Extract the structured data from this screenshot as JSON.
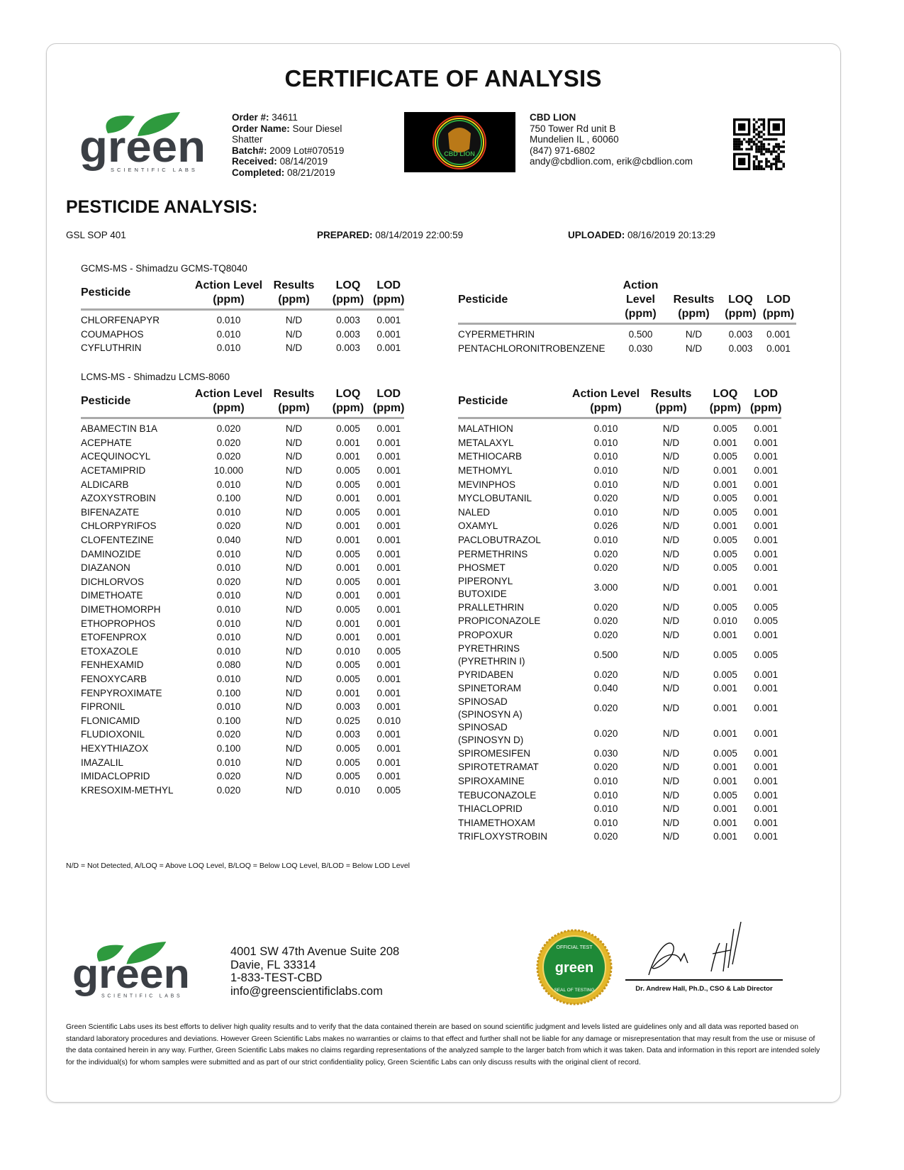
{
  "title": "CERTIFICATE OF ANALYSIS",
  "lab_logo": {
    "text": "green",
    "subtext": "SCIENTIFIC LABS",
    "brand_green": "#2e9a3e",
    "brand_gray": "#3b3f45"
  },
  "order": {
    "order_no_label": "Order #:",
    "order_no": "34611",
    "order_name_label": "Order Name:",
    "order_name": "Sour Diesel",
    "order_name_cont": "Shatter",
    "batch_label": "Batch#:",
    "batch": "2009 Lot#070519",
    "received_label": "Received:",
    "received": "08/14/2019",
    "completed_label": "Completed:",
    "completed": "08/21/2019"
  },
  "client_logo": {
    "text": "CBD LION"
  },
  "client": {
    "name": "CBD LION",
    "address1": "750 Tower Rd unit B",
    "address2": "Mundelien IL , 60060",
    "phone": "(847) 971-6802",
    "emails": "andy@cbdlion.com, erik@cbdlion.com"
  },
  "section_title": "PESTICIDE ANALYSIS:",
  "meta": {
    "sop": "GSL SOP 401",
    "prepared_label": "PREPARED:",
    "prepared": "08/14/2019 22:00:59",
    "uploaded_label": "UPLOADED:",
    "uploaded": "08/16/2019 20:13:29"
  },
  "headers": {
    "pesticide": "Pesticide",
    "action_level": "Action Level",
    "results": "Results",
    "loq": "LOQ",
    "lod": "LOD",
    "unit": "(ppm)"
  },
  "gcms": {
    "label": "GCMS-MS - Shimadzu GCMS-TQ8040",
    "left": [
      [
        "CHLORFENAPYR",
        "0.010",
        "N/D",
        "0.003",
        "0.001"
      ],
      [
        "COUMAPHOS",
        "0.010",
        "N/D",
        "0.003",
        "0.001"
      ],
      [
        "CYFLUTHRIN",
        "0.010",
        "N/D",
        "0.003",
        "0.001"
      ]
    ],
    "right": [
      [
        "CYPERMETHRIN",
        "0.500",
        "N/D",
        "0.003",
        "0.001"
      ],
      [
        "PENTACHLORONITROBENZENE",
        "0.030",
        "N/D",
        "0.003",
        "0.001"
      ]
    ]
  },
  "lcms": {
    "label": "LCMS-MS - Shimadzu LCMS-8060",
    "left": [
      [
        "ABAMECTIN B1A",
        "0.020",
        "N/D",
        "0.005",
        "0.001"
      ],
      [
        "ACEPHATE",
        "0.020",
        "N/D",
        "0.001",
        "0.001"
      ],
      [
        "ACEQUINOCYL",
        "0.020",
        "N/D",
        "0.001",
        "0.001"
      ],
      [
        "ACETAMIPRID",
        "10.000",
        "N/D",
        "0.005",
        "0.001"
      ],
      [
        "ALDICARB",
        "0.010",
        "N/D",
        "0.005",
        "0.001"
      ],
      [
        "AZOXYSTROBIN",
        "0.100",
        "N/D",
        "0.001",
        "0.001"
      ],
      [
        "BIFENAZATE",
        "0.010",
        "N/D",
        "0.005",
        "0.001"
      ],
      [
        "CHLORPYRIFOS",
        "0.020",
        "N/D",
        "0.001",
        "0.001"
      ],
      [
        "CLOFENTEZINE",
        "0.040",
        "N/D",
        "0.001",
        "0.001"
      ],
      [
        "DAMINOZIDE",
        "0.010",
        "N/D",
        "0.005",
        "0.001"
      ],
      [
        "DIAZANON",
        "0.010",
        "N/D",
        "0.001",
        "0.001"
      ],
      [
        "DICHLORVOS",
        "0.020",
        "N/D",
        "0.005",
        "0.001"
      ],
      [
        "DIMETHOATE",
        "0.010",
        "N/D",
        "0.001",
        "0.001"
      ],
      [
        "DIMETHOMORPH",
        "0.010",
        "N/D",
        "0.005",
        "0.001"
      ],
      [
        "ETHOPROPHOS",
        "0.010",
        "N/D",
        "0.001",
        "0.001"
      ],
      [
        "ETOFENPROX",
        "0.010",
        "N/D",
        "0.001",
        "0.001"
      ],
      [
        "ETOXAZOLE",
        "0.010",
        "N/D",
        "0.010",
        "0.005"
      ],
      [
        "FENHEXAMID",
        "0.080",
        "N/D",
        "0.005",
        "0.001"
      ],
      [
        "FENOXYCARB",
        "0.010",
        "N/D",
        "0.005",
        "0.001"
      ],
      [
        "FENPYROXIMATE",
        "0.100",
        "N/D",
        "0.001",
        "0.001"
      ],
      [
        "FIPRONIL",
        "0.010",
        "N/D",
        "0.003",
        "0.001"
      ],
      [
        "FLONICAMID",
        "0.100",
        "N/D",
        "0.025",
        "0.010"
      ],
      [
        "FLUDIOXONIL",
        "0.020",
        "N/D",
        "0.003",
        "0.001"
      ],
      [
        "HEXYTHIAZOX",
        "0.100",
        "N/D",
        "0.005",
        "0.001"
      ],
      [
        "IMAZALIL",
        "0.010",
        "N/D",
        "0.005",
        "0.001"
      ],
      [
        "IMIDACLOPRID",
        "0.020",
        "N/D",
        "0.005",
        "0.001"
      ],
      [
        "KRESOXIM-METHYL",
        "0.020",
        "N/D",
        "0.010",
        "0.005"
      ]
    ],
    "right": [
      [
        "MALATHION",
        "0.010",
        "N/D",
        "0.005",
        "0.001"
      ],
      [
        "METALAXYL",
        "0.010",
        "N/D",
        "0.001",
        "0.001"
      ],
      [
        "METHIOCARB",
        "0.010",
        "N/D",
        "0.005",
        "0.001"
      ],
      [
        "METHOMYL",
        "0.010",
        "N/D",
        "0.001",
        "0.001"
      ],
      [
        "MEVINPHOS",
        "0.010",
        "N/D",
        "0.001",
        "0.001"
      ],
      [
        "MYCLOBUTANIL",
        "0.020",
        "N/D",
        "0.005",
        "0.001"
      ],
      [
        "NALED",
        "0.010",
        "N/D",
        "0.005",
        "0.001"
      ],
      [
        "OXAMYL",
        "0.026",
        "N/D",
        "0.001",
        "0.001"
      ],
      [
        "PACLOBUTRAZOL",
        "0.010",
        "N/D",
        "0.005",
        "0.001"
      ],
      [
        "PERMETHRINS",
        "0.020",
        "N/D",
        "0.005",
        "0.001"
      ],
      [
        "PHOSMET",
        "0.020",
        "N/D",
        "0.005",
        "0.001"
      ],
      [
        "PIPERONYL\nBUTOXIDE",
        "3.000",
        "N/D",
        "0.001",
        "0.001"
      ],
      [
        "PRALLETHRIN",
        "0.020",
        "N/D",
        "0.005",
        "0.005"
      ],
      [
        "PROPICONAZOLE",
        "0.020",
        "N/D",
        "0.010",
        "0.005"
      ],
      [
        "PROPOXUR",
        "0.020",
        "N/D",
        "0.001",
        "0.001"
      ],
      [
        "PYRETHRINS\n(PYRETHRIN I)",
        "0.500",
        "N/D",
        "0.005",
        "0.005"
      ],
      [
        "PYRIDABEN",
        "0.020",
        "N/D",
        "0.005",
        "0.001"
      ],
      [
        "SPINETORAM",
        "0.040",
        "N/D",
        "0.001",
        "0.001"
      ],
      [
        "SPINOSAD\n(SPINOSYN A)",
        "0.020",
        "N/D",
        "0.001",
        "0.001"
      ],
      [
        "SPINOSAD\n(SPINOSYN D)",
        "0.020",
        "N/D",
        "0.001",
        "0.001"
      ],
      [
        "SPIROMESIFEN",
        "0.030",
        "N/D",
        "0.005",
        "0.001"
      ],
      [
        "SPIROTETRAMAT",
        "0.020",
        "N/D",
        "0.001",
        "0.001"
      ],
      [
        "SPIROXAMINE",
        "0.010",
        "N/D",
        "0.001",
        "0.001"
      ],
      [
        "TEBUCONAZOLE",
        "0.010",
        "N/D",
        "0.005",
        "0.001"
      ],
      [
        "THIACLOPRID",
        "0.010",
        "N/D",
        "0.001",
        "0.001"
      ],
      [
        "THIAMETHOXAM",
        "0.010",
        "N/D",
        "0.001",
        "0.001"
      ],
      [
        "TRIFLOXYSTROBIN",
        "0.020",
        "N/D",
        "0.001",
        "0.001"
      ]
    ]
  },
  "footnote": "N/D = Not Detected, A/LOQ = Above LOQ Level, B/LOQ = Below LOQ Level, B/LOD = Below LOD Level",
  "lab_address": {
    "line1": "4001 SW 47th Avenue Suite 208",
    "line2": "Davie, FL 33314",
    "phone": "1-833-TEST-CBD",
    "email": "info@greenscientificlabs.com"
  },
  "seal": {
    "top_text": "OFFICIAL TEST",
    "center_text": "green",
    "bottom_text": "SEAL OF TESTING"
  },
  "signature_caption": "Dr. Andrew Hall, Ph.D., CSO & Lab Director",
  "disclaimer": "Green Scientific Labs uses its best efforts to deliver high quality results and to verify that the data contained therein are based on sound scientific judgment and levels listed are guidelines only and all data was reported based on standard laboratory procedures and deviations. However Green Scientific Labs makes no warranties or claims to that effect and further shall not be liable for any damage or misrepresentation that may result from the use or misuse of the data contained herein in any way. Further, Green Scientific Labs makes no claims regarding representations of the analyzed sample to the larger batch from which it was taken. Data and information in this report are intended solely for the individual(s) for whom samples were submitted and as part of our strict confidentiality policy, Green Scientific Labs can only discuss results with the original client of record."
}
